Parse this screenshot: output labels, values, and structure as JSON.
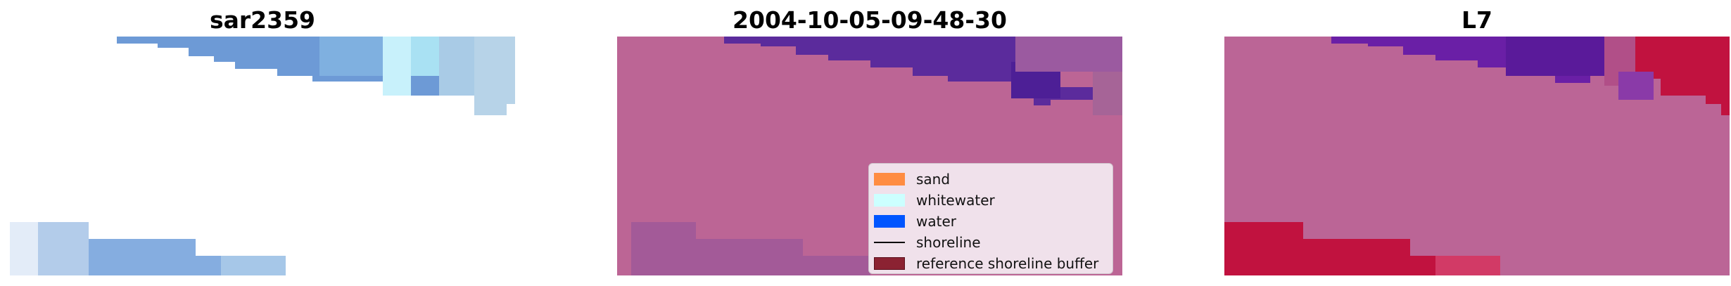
{
  "panels": [
    {
      "title": "sar2359",
      "content": "rgb-image"
    },
    {
      "title": "2004-10-05-09-48-30",
      "content": "classified-image"
    },
    {
      "title": "L7",
      "content": "mndwi-image"
    }
  ],
  "legend": {
    "items": [
      {
        "label": "sand",
        "color": "#ff8c42",
        "kind": "patch"
      },
      {
        "label": "whitewater",
        "color": "#ccffff",
        "kind": "patch"
      },
      {
        "label": "water",
        "color": "#0055ff",
        "kind": "patch"
      },
      {
        "label": "shoreline",
        "color": "#000000",
        "kind": "line"
      },
      {
        "label": "reference shoreline buffer",
        "color": "#8b2232",
        "kind": "patch"
      }
    ]
  },
  "colors": {
    "rgb_water_blue": "#6d9ad6",
    "rgb_water_light": "#a9cbe6",
    "rgb_whitewater": "#c8f1fb",
    "classified_background": "#bc6595",
    "classified_water": "#5b2b9c",
    "classified_water_dark": "#4d1f96",
    "classified_sand_mix": "#a35a98",
    "mndwi_background": "#bb6596",
    "mndwi_purple": "#6a1fa6",
    "mndwi_red": "#c1123f"
  }
}
